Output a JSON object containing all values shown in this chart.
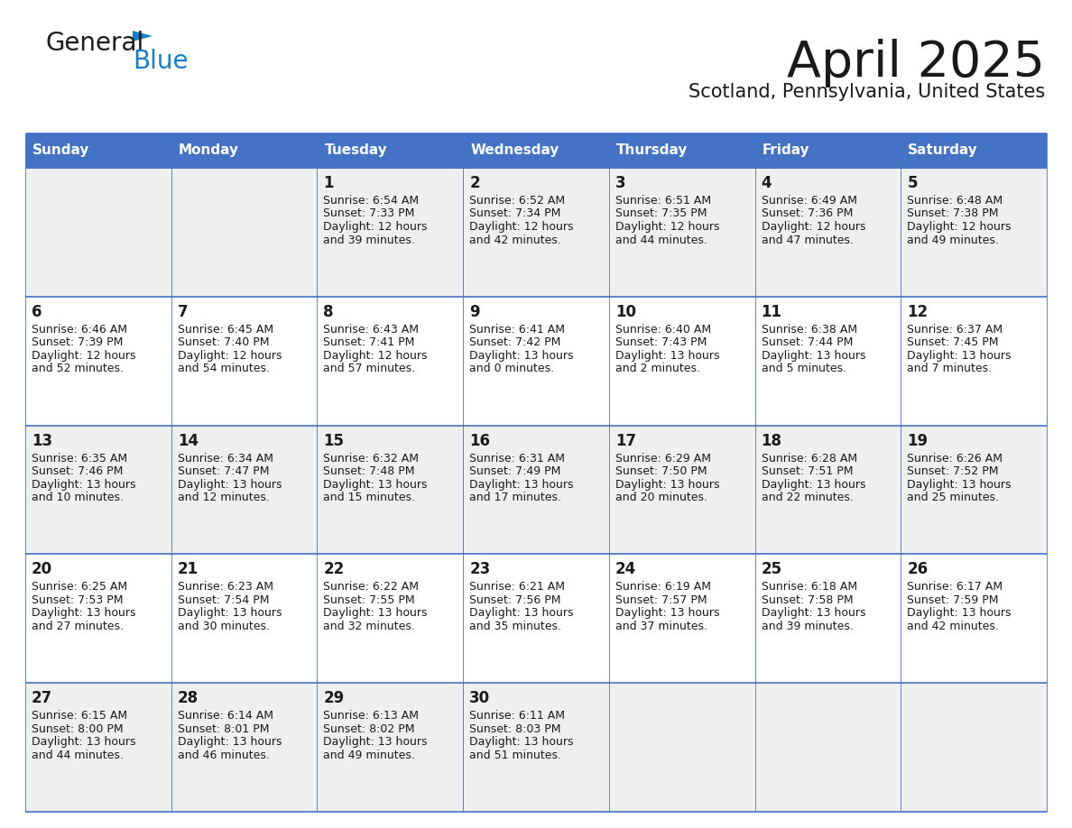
{
  "title": "April 2025",
  "subtitle": "Scotland, Pennsylvania, United States",
  "header_bg_color": "#4472C4",
  "header_text_color": "#FFFFFF",
  "row_bg_gray": "#EFEFEF",
  "row_bg_white": "#FFFFFF",
  "border_color": "#4472C4",
  "row_separator_color": "#4472C4",
  "day_headers": [
    "Sunday",
    "Monday",
    "Tuesday",
    "Wednesday",
    "Thursday",
    "Friday",
    "Saturday"
  ],
  "days": [
    {
      "col": 0,
      "row": 0,
      "num": "",
      "sunrise": "",
      "sunset": "",
      "daylight1": "",
      "daylight2": ""
    },
    {
      "col": 1,
      "row": 0,
      "num": "",
      "sunrise": "",
      "sunset": "",
      "daylight1": "",
      "daylight2": ""
    },
    {
      "col": 2,
      "row": 0,
      "num": "1",
      "sunrise": "Sunrise: 6:54 AM",
      "sunset": "Sunset: 7:33 PM",
      "daylight1": "Daylight: 12 hours",
      "daylight2": "and 39 minutes."
    },
    {
      "col": 3,
      "row": 0,
      "num": "2",
      "sunrise": "Sunrise: 6:52 AM",
      "sunset": "Sunset: 7:34 PM",
      "daylight1": "Daylight: 12 hours",
      "daylight2": "and 42 minutes."
    },
    {
      "col": 4,
      "row": 0,
      "num": "3",
      "sunrise": "Sunrise: 6:51 AM",
      "sunset": "Sunset: 7:35 PM",
      "daylight1": "Daylight: 12 hours",
      "daylight2": "and 44 minutes."
    },
    {
      "col": 5,
      "row": 0,
      "num": "4",
      "sunrise": "Sunrise: 6:49 AM",
      "sunset": "Sunset: 7:36 PM",
      "daylight1": "Daylight: 12 hours",
      "daylight2": "and 47 minutes."
    },
    {
      "col": 6,
      "row": 0,
      "num": "5",
      "sunrise": "Sunrise: 6:48 AM",
      "sunset": "Sunset: 7:38 PM",
      "daylight1": "Daylight: 12 hours",
      "daylight2": "and 49 minutes."
    },
    {
      "col": 0,
      "row": 1,
      "num": "6",
      "sunrise": "Sunrise: 6:46 AM",
      "sunset": "Sunset: 7:39 PM",
      "daylight1": "Daylight: 12 hours",
      "daylight2": "and 52 minutes."
    },
    {
      "col": 1,
      "row": 1,
      "num": "7",
      "sunrise": "Sunrise: 6:45 AM",
      "sunset": "Sunset: 7:40 PM",
      "daylight1": "Daylight: 12 hours",
      "daylight2": "and 54 minutes."
    },
    {
      "col": 2,
      "row": 1,
      "num": "8",
      "sunrise": "Sunrise: 6:43 AM",
      "sunset": "Sunset: 7:41 PM",
      "daylight1": "Daylight: 12 hours",
      "daylight2": "and 57 minutes."
    },
    {
      "col": 3,
      "row": 1,
      "num": "9",
      "sunrise": "Sunrise: 6:41 AM",
      "sunset": "Sunset: 7:42 PM",
      "daylight1": "Daylight: 13 hours",
      "daylight2": "and 0 minutes."
    },
    {
      "col": 4,
      "row": 1,
      "num": "10",
      "sunrise": "Sunrise: 6:40 AM",
      "sunset": "Sunset: 7:43 PM",
      "daylight1": "Daylight: 13 hours",
      "daylight2": "and 2 minutes."
    },
    {
      "col": 5,
      "row": 1,
      "num": "11",
      "sunrise": "Sunrise: 6:38 AM",
      "sunset": "Sunset: 7:44 PM",
      "daylight1": "Daylight: 13 hours",
      "daylight2": "and 5 minutes."
    },
    {
      "col": 6,
      "row": 1,
      "num": "12",
      "sunrise": "Sunrise: 6:37 AM",
      "sunset": "Sunset: 7:45 PM",
      "daylight1": "Daylight: 13 hours",
      "daylight2": "and 7 minutes."
    },
    {
      "col": 0,
      "row": 2,
      "num": "13",
      "sunrise": "Sunrise: 6:35 AM",
      "sunset": "Sunset: 7:46 PM",
      "daylight1": "Daylight: 13 hours",
      "daylight2": "and 10 minutes."
    },
    {
      "col": 1,
      "row": 2,
      "num": "14",
      "sunrise": "Sunrise: 6:34 AM",
      "sunset": "Sunset: 7:47 PM",
      "daylight1": "Daylight: 13 hours",
      "daylight2": "and 12 minutes."
    },
    {
      "col": 2,
      "row": 2,
      "num": "15",
      "sunrise": "Sunrise: 6:32 AM",
      "sunset": "Sunset: 7:48 PM",
      "daylight1": "Daylight: 13 hours",
      "daylight2": "and 15 minutes."
    },
    {
      "col": 3,
      "row": 2,
      "num": "16",
      "sunrise": "Sunrise: 6:31 AM",
      "sunset": "Sunset: 7:49 PM",
      "daylight1": "Daylight: 13 hours",
      "daylight2": "and 17 minutes."
    },
    {
      "col": 4,
      "row": 2,
      "num": "17",
      "sunrise": "Sunrise: 6:29 AM",
      "sunset": "Sunset: 7:50 PM",
      "daylight1": "Daylight: 13 hours",
      "daylight2": "and 20 minutes."
    },
    {
      "col": 5,
      "row": 2,
      "num": "18",
      "sunrise": "Sunrise: 6:28 AM",
      "sunset": "Sunset: 7:51 PM",
      "daylight1": "Daylight: 13 hours",
      "daylight2": "and 22 minutes."
    },
    {
      "col": 6,
      "row": 2,
      "num": "19",
      "sunrise": "Sunrise: 6:26 AM",
      "sunset": "Sunset: 7:52 PM",
      "daylight1": "Daylight: 13 hours",
      "daylight2": "and 25 minutes."
    },
    {
      "col": 0,
      "row": 3,
      "num": "20",
      "sunrise": "Sunrise: 6:25 AM",
      "sunset": "Sunset: 7:53 PM",
      "daylight1": "Daylight: 13 hours",
      "daylight2": "and 27 minutes."
    },
    {
      "col": 1,
      "row": 3,
      "num": "21",
      "sunrise": "Sunrise: 6:23 AM",
      "sunset": "Sunset: 7:54 PM",
      "daylight1": "Daylight: 13 hours",
      "daylight2": "and 30 minutes."
    },
    {
      "col": 2,
      "row": 3,
      "num": "22",
      "sunrise": "Sunrise: 6:22 AM",
      "sunset": "Sunset: 7:55 PM",
      "daylight1": "Daylight: 13 hours",
      "daylight2": "and 32 minutes."
    },
    {
      "col": 3,
      "row": 3,
      "num": "23",
      "sunrise": "Sunrise: 6:21 AM",
      "sunset": "Sunset: 7:56 PM",
      "daylight1": "Daylight: 13 hours",
      "daylight2": "and 35 minutes."
    },
    {
      "col": 4,
      "row": 3,
      "num": "24",
      "sunrise": "Sunrise: 6:19 AM",
      "sunset": "Sunset: 7:57 PM",
      "daylight1": "Daylight: 13 hours",
      "daylight2": "and 37 minutes."
    },
    {
      "col": 5,
      "row": 3,
      "num": "25",
      "sunrise": "Sunrise: 6:18 AM",
      "sunset": "Sunset: 7:58 PM",
      "daylight1": "Daylight: 13 hours",
      "daylight2": "and 39 minutes."
    },
    {
      "col": 6,
      "row": 3,
      "num": "26",
      "sunrise": "Sunrise: 6:17 AM",
      "sunset": "Sunset: 7:59 PM",
      "daylight1": "Daylight: 13 hours",
      "daylight2": "and 42 minutes."
    },
    {
      "col": 0,
      "row": 4,
      "num": "27",
      "sunrise": "Sunrise: 6:15 AM",
      "sunset": "Sunset: 8:00 PM",
      "daylight1": "Daylight: 13 hours",
      "daylight2": "and 44 minutes."
    },
    {
      "col": 1,
      "row": 4,
      "num": "28",
      "sunrise": "Sunrise: 6:14 AM",
      "sunset": "Sunset: 8:01 PM",
      "daylight1": "Daylight: 13 hours",
      "daylight2": "and 46 minutes."
    },
    {
      "col": 2,
      "row": 4,
      "num": "29",
      "sunrise": "Sunrise: 6:13 AM",
      "sunset": "Sunset: 8:02 PM",
      "daylight1": "Daylight: 13 hours",
      "daylight2": "and 49 minutes."
    },
    {
      "col": 3,
      "row": 4,
      "num": "30",
      "sunrise": "Sunrise: 6:11 AM",
      "sunset": "Sunset: 8:03 PM",
      "daylight1": "Daylight: 13 hours",
      "daylight2": "and 51 minutes."
    },
    {
      "col": 4,
      "row": 4,
      "num": "",
      "sunrise": "",
      "sunset": "",
      "daylight1": "",
      "daylight2": ""
    },
    {
      "col": 5,
      "row": 4,
      "num": "",
      "sunrise": "",
      "sunset": "",
      "daylight1": "",
      "daylight2": ""
    },
    {
      "col": 6,
      "row": 4,
      "num": "",
      "sunrise": "",
      "sunset": "",
      "daylight1": "",
      "daylight2": ""
    }
  ],
  "num_rows": 5,
  "num_cols": 7,
  "logo_text_general": "General",
  "logo_text_blue": "Blue",
  "logo_color_general": "#1a1a1a",
  "logo_color_blue": "#1a7cc7",
  "logo_triangle_color": "#1a7cc7",
  "title_fontsize": 40,
  "subtitle_fontsize": 15,
  "header_fontsize": 11,
  "daynum_fontsize": 12,
  "cell_fontsize": 9
}
